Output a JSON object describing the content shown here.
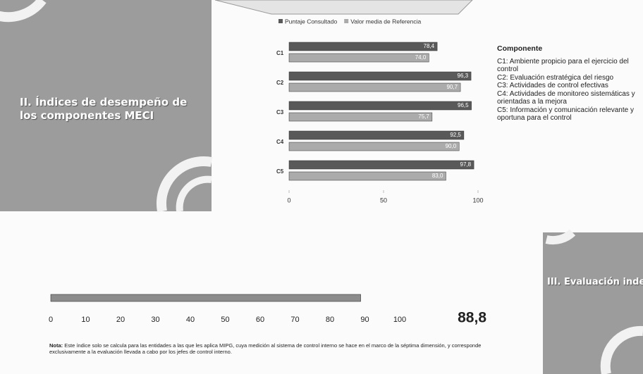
{
  "left_panel": {
    "title": "II. Índices de desempeño de los componentes MECI"
  },
  "chart_data": [
    {
      "type": "bar",
      "orientation": "horizontal",
      "categories": [
        "C1",
        "C2",
        "C3",
        "C4",
        "C5"
      ],
      "series": [
        {
          "name": "Puntaje Consultado",
          "color": "#595959",
          "values": [
            78.4,
            96.3,
            96.5,
            92.5,
            97.8
          ],
          "value_labels": [
            "78,4",
            "96,3",
            "96,5",
            "92,5",
            "97,8"
          ]
        },
        {
          "name": "Valor media de Referencia",
          "color": "#ababab",
          "values": [
            74.0,
            90.7,
            75.7,
            90.0,
            83.0
          ],
          "value_labels": [
            "74,0",
            "90,7",
            "75,7",
            "90,0",
            "83,0"
          ]
        }
      ],
      "xlim": [
        0,
        100
      ],
      "xticks": [
        0,
        50,
        100
      ],
      "legend": "top"
    },
    {
      "type": "bar",
      "orientation": "horizontal",
      "categories": [
        null
      ],
      "values": [
        88.8
      ],
      "value_labels": [
        "88,8"
      ],
      "color": "#8c8c8c",
      "xlim": [
        0,
        100
      ],
      "xticks": [
        0,
        10,
        20,
        30,
        40,
        50,
        60,
        70,
        80,
        90,
        100
      ]
    }
  ],
  "components": {
    "heading": "Componente",
    "items": [
      "C1: Ambiente propicio para el ejercicio del control",
      "C2: Evaluación estratégica del riesgo",
      "C3: Actividades de control efectivas",
      "C4: Actividades de monitoreo sistemáticas y orientadas a la mejora",
      "C5: Información y comunicación relevante y oportuna para el control"
    ]
  },
  "note": {
    "label": "Nota:",
    "text": "Este índice solo se calcula para las entidades a las que les aplica MIPG, cuya medición al sistema de control interno se hace en el marco de la séptima dimensión, y corresponde exclusivamente a la evaluación llevada a cabo por los jefes de control interno."
  },
  "right_panel": {
    "title": "III. Evaluación independiente del Sistema de Control Interno"
  }
}
